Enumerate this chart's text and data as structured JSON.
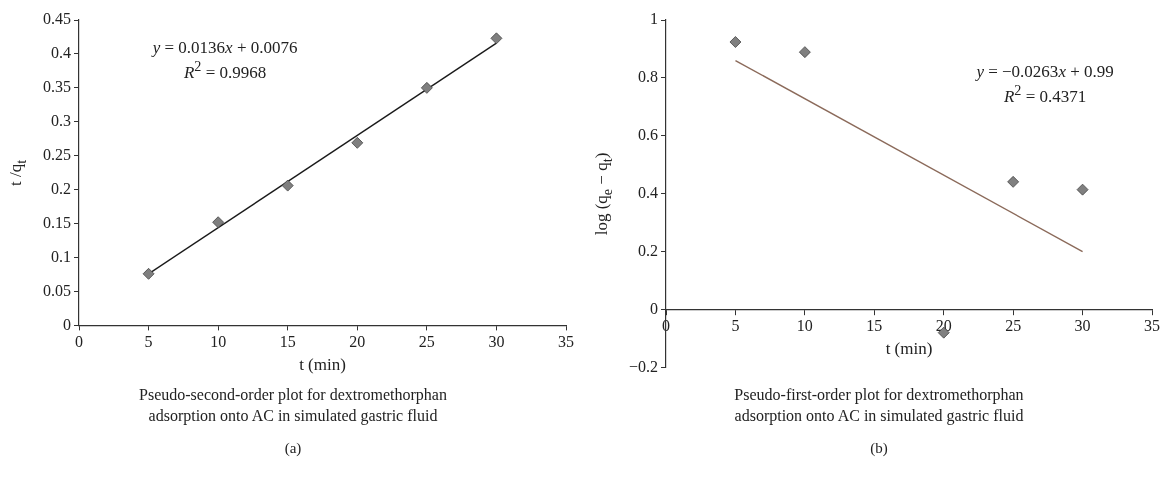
{
  "chart_data": [
    {
      "type": "scatter",
      "xlabel": "t (min)",
      "ylabel": "t /q$_{t}$",
      "legend": false,
      "grid": false,
      "series": [
        {
          "marker": "diamond",
          "color": "#7f7f7f",
          "x": [
            5,
            10,
            15,
            20,
            25,
            30
          ],
          "values": [
            0.076,
            0.152,
            0.206,
            0.269,
            0.35,
            0.423
          ]
        },
        {
          "type": "line",
          "color": "#1a1a1a",
          "x": [
            5,
            30
          ],
          "values": [
            0.076,
            0.416
          ]
        }
      ],
      "xlim": [
        0,
        35
      ],
      "xticks": [
        0,
        5,
        10,
        15,
        20,
        25,
        30,
        35
      ],
      "ylim": [
        0,
        0.45
      ],
      "yticks": [
        0,
        0.05,
        0.1,
        0.15,
        0.2,
        0.25,
        0.3,
        0.35,
        0.4,
        0.45
      ],
      "annotations": [
        "y = 0.0136x + 0.0076",
        "R$^{2}$ = 0.9968",
        "Pseudo-second-order plot for dextromethorphan adsorption onto AC in simulated gastric fluid",
        "(a)"
      ]
    },
    {
      "type": "scatter",
      "xlabel": "t (min)",
      "ylabel": "log (q$_{e}$ − q$_{t}$)",
      "legend": false,
      "grid": false,
      "series": [
        {
          "marker": "diamond",
          "color": "#808080",
          "x": [
            5,
            10,
            20,
            25,
            30
          ],
          "values": [
            0.924,
            0.889,
            -0.08,
            0.441,
            0.414
          ]
        },
        {
          "type": "line",
          "color": "#8b6a5a",
          "x": [
            5,
            30
          ],
          "values": [
            0.86,
            0.2
          ]
        }
      ],
      "xlim": [
        0,
        35
      ],
      "xticks": [
        0,
        5,
        10,
        15,
        20,
        25,
        30,
        35
      ],
      "ylim": [
        -0.2,
        1
      ],
      "yticks": [
        {
          "value": -0.2,
          "label": "−0.2"
        },
        0,
        0.2,
        0.4,
        0.6,
        0.8,
        1
      ],
      "annotations": [
        "y = −0.0263x + 0.99",
        "R$^{2}$ = 0.4371",
        "Pseudo-first-order plot for dextromethorphan adsorption onto AC in simulated gastric fluid",
        "(b)"
      ]
    }
  ]
}
